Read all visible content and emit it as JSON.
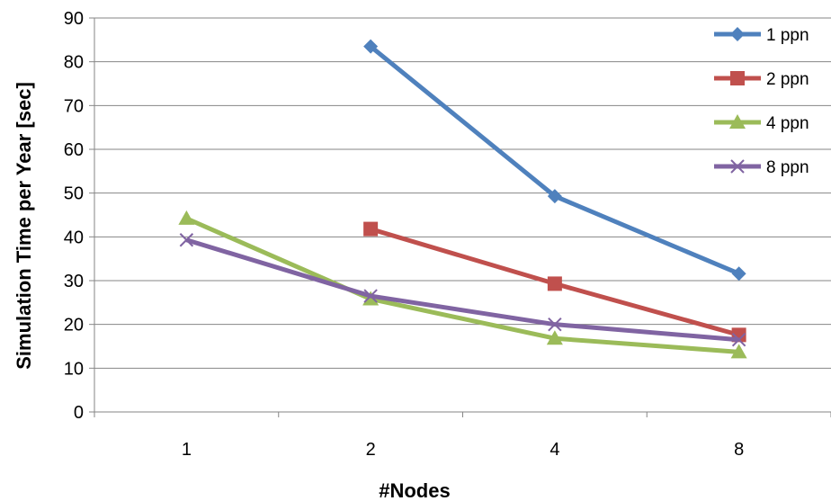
{
  "chart_data": {
    "type": "line",
    "xlabel": "#Nodes",
    "ylabel": "Simulation Time per Year [sec]",
    "categories": [
      "1",
      "2",
      "4",
      "8"
    ],
    "ylim": [
      0,
      90
    ],
    "yticks": [
      "0",
      "10",
      "20",
      "30",
      "40",
      "50",
      "60",
      "70",
      "80",
      "90"
    ],
    "grid": "horizontal",
    "legend_position": "right",
    "series": [
      {
        "name": "1 ppn",
        "color": "#4F81BD",
        "marker": "diamond",
        "values": [
          null,
          83.5,
          49.3,
          31.6
        ]
      },
      {
        "name": "2 ppn",
        "color": "#C0504D",
        "marker": "square",
        "values": [
          null,
          41.8,
          29.3,
          17.6
        ]
      },
      {
        "name": "4 ppn",
        "color": "#9BBB59",
        "marker": "triangle",
        "values": [
          44.2,
          25.8,
          16.8,
          13.7
        ]
      },
      {
        "name": "8 ppn",
        "color": "#8064A2",
        "marker": "x",
        "values": [
          39.3,
          26.5,
          20.0,
          16.5
        ]
      }
    ]
  }
}
